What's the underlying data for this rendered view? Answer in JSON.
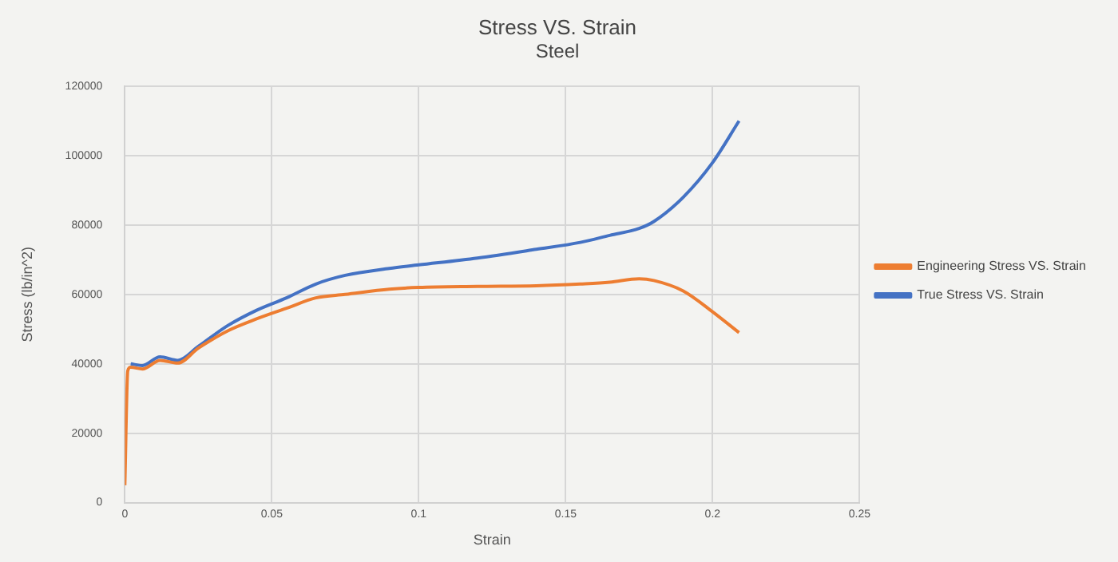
{
  "chart_data": {
    "type": "line",
    "title": "Stress VS. Strain",
    "subtitle": "Steel",
    "xlabel": "Strain",
    "ylabel": "Stress (lb/in^2)",
    "x": [
      0,
      0.001,
      0.002,
      0.006,
      0.012,
      0.018,
      0.025,
      0.035,
      0.045,
      0.055,
      0.065,
      0.075,
      0.09,
      0.1,
      0.12,
      0.14,
      0.155,
      0.165,
      0.175,
      0.18,
      0.19,
      0.2,
      0.209
    ],
    "series": [
      {
        "name": "True Stress VS. Strain",
        "color": "#4472c4",
        "values": [
          null,
          null,
          40000,
          39500,
          42000,
          41000,
          45000,
          51000,
          55500,
          59000,
          63000,
          65500,
          67500,
          68500,
          70500,
          73000,
          75000,
          77000,
          79000,
          81000,
          88000,
          98000,
          110000
        ]
      },
      {
        "name": "Engineering Stress VS. Strain",
        "color": "#ed7d31",
        "values": [
          5000,
          38000,
          39000,
          38500,
          41000,
          40200,
          44500,
          49500,
          53000,
          56000,
          59000,
          60000,
          61500,
          62000,
          62300,
          62500,
          63000,
          63500,
          64500,
          64000,
          61000,
          55000,
          49000
        ]
      }
    ],
    "xlim": [
      0,
      0.25
    ],
    "xticks": [
      0,
      0.05,
      0.1,
      0.15,
      0.2,
      0.25
    ],
    "ylim": [
      0,
      120000
    ],
    "yticks": [
      0,
      20000,
      40000,
      60000,
      80000,
      100000,
      120000
    ],
    "grid": true,
    "legend": "right",
    "marker": "none",
    "line_style": "solid"
  }
}
